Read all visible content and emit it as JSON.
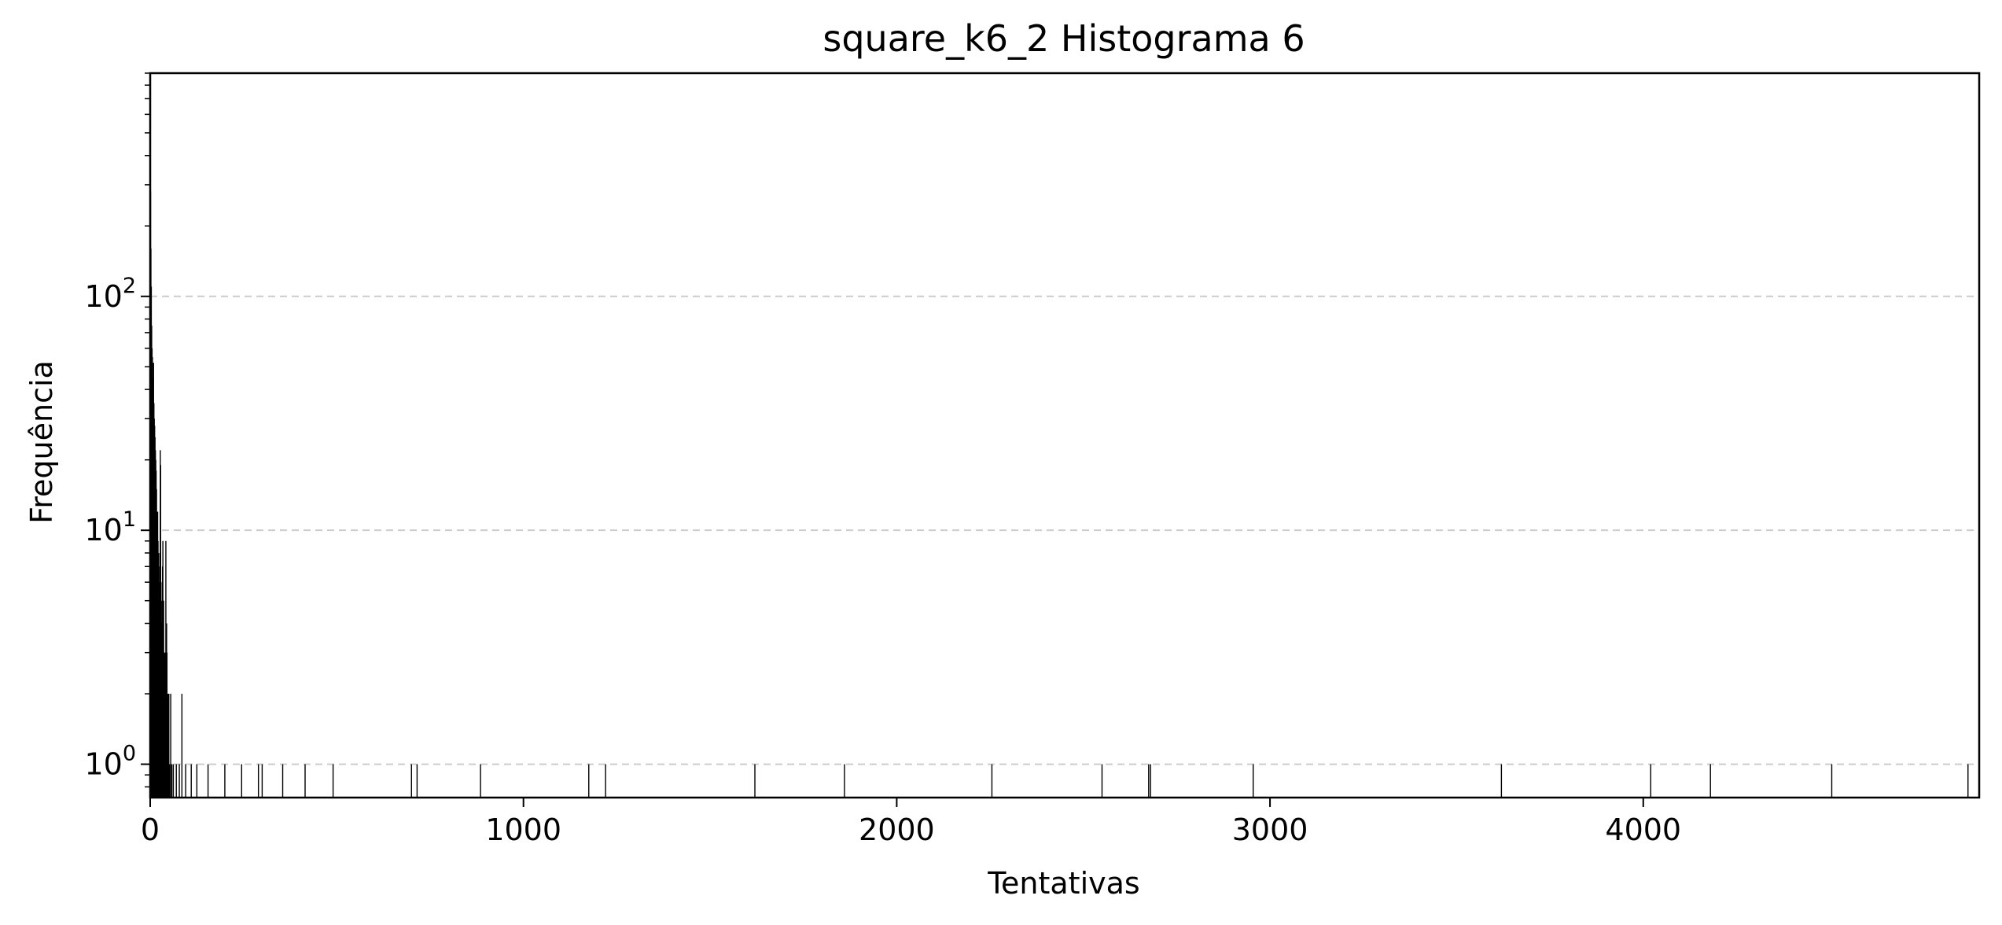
{
  "chart_data": {
    "type": "bar",
    "title": "square_k6_2 Histograma 6",
    "xlabel": "Tentativas",
    "ylabel": "Frequência",
    "yscale": "log",
    "xlim": [
      0,
      4900
    ],
    "ylim": [
      0.72,
      900
    ],
    "x_ticks": [
      {
        "value": 0,
        "label": "0"
      },
      {
        "value": 1000,
        "label": "1000"
      },
      {
        "value": 2000,
        "label": "2000"
      },
      {
        "value": 3000,
        "label": "3000"
      },
      {
        "value": 4000,
        "label": "4000"
      }
    ],
    "y_ticks": [
      {
        "value": 1,
        "base": "10",
        "exp": "0"
      },
      {
        "value": 10,
        "base": "10",
        "exp": "1"
      },
      {
        "value": 100,
        "base": "10",
        "exp": "2"
      }
    ],
    "grid": {
      "y": true,
      "x": false,
      "style": "dashed"
    },
    "bar_color": "#000000",
    "bars": [
      {
        "x": 1,
        "y": 280
      },
      {
        "x": 2,
        "y": 160
      },
      {
        "x": 3,
        "y": 110
      },
      {
        "x": 4,
        "y": 75
      },
      {
        "x": 5,
        "y": 60
      },
      {
        "x": 6,
        "y": 55
      },
      {
        "x": 7,
        "y": 45
      },
      {
        "x": 8,
        "y": 40
      },
      {
        "x": 9,
        "y": 52
      },
      {
        "x": 10,
        "y": 35
      },
      {
        "x": 11,
        "y": 30
      },
      {
        "x": 12,
        "y": 28
      },
      {
        "x": 13,
        "y": 25
      },
      {
        "x": 14,
        "y": 22
      },
      {
        "x": 15,
        "y": 20
      },
      {
        "x": 16,
        "y": 18
      },
      {
        "x": 17,
        "y": 15
      },
      {
        "x": 18,
        "y": 12
      },
      {
        "x": 19,
        "y": 10
      },
      {
        "x": 20,
        "y": 12
      },
      {
        "x": 21,
        "y": 9
      },
      {
        "x": 22,
        "y": 8
      },
      {
        "x": 23,
        "y": 7
      },
      {
        "x": 24,
        "y": 5
      },
      {
        "x": 25,
        "y": 6
      },
      {
        "x": 26,
        "y": 8
      },
      {
        "x": 27,
        "y": 22
      },
      {
        "x": 28,
        "y": 19
      },
      {
        "x": 29,
        "y": 6
      },
      {
        "x": 30,
        "y": 5
      },
      {
        "x": 31,
        "y": 4
      },
      {
        "x": 32,
        "y": 3
      },
      {
        "x": 33,
        "y": 7
      },
      {
        "x": 34,
        "y": 9
      },
      {
        "x": 35,
        "y": 4
      },
      {
        "x": 36,
        "y": 5
      },
      {
        "x": 37,
        "y": 2
      },
      {
        "x": 38,
        "y": 3
      },
      {
        "x": 39,
        "y": 2
      },
      {
        "x": 40,
        "y": 3
      },
      {
        "x": 41,
        "y": 2
      },
      {
        "x": 42,
        "y": 9
      },
      {
        "x": 43,
        "y": 2
      },
      {
        "x": 44,
        "y": 4
      },
      {
        "x": 45,
        "y": 3
      },
      {
        "x": 46,
        "y": 2
      },
      {
        "x": 47,
        "y": 2
      },
      {
        "x": 48,
        "y": 1
      },
      {
        "x": 49,
        "y": 2
      },
      {
        "x": 50,
        "y": 2
      },
      {
        "x": 52,
        "y": 1
      },
      {
        "x": 55,
        "y": 2
      },
      {
        "x": 58,
        "y": 1
      },
      {
        "x": 62,
        "y": 1
      },
      {
        "x": 70,
        "y": 1
      },
      {
        "x": 78,
        "y": 1
      },
      {
        "x": 85,
        "y": 2
      },
      {
        "x": 95,
        "y": 1
      },
      {
        "x": 110,
        "y": 1
      },
      {
        "x": 125,
        "y": 1
      },
      {
        "x": 155,
        "y": 1
      },
      {
        "x": 200,
        "y": 1
      },
      {
        "x": 245,
        "y": 1
      },
      {
        "x": 290,
        "y": 1
      },
      {
        "x": 300,
        "y": 1
      },
      {
        "x": 355,
        "y": 1
      },
      {
        "x": 415,
        "y": 1
      },
      {
        "x": 490,
        "y": 1
      },
      {
        "x": 700,
        "y": 1
      },
      {
        "x": 715,
        "y": 1
      },
      {
        "x": 885,
        "y": 1
      },
      {
        "x": 1175,
        "y": 1
      },
      {
        "x": 1220,
        "y": 1
      },
      {
        "x": 1620,
        "y": 1
      },
      {
        "x": 1860,
        "y": 1
      },
      {
        "x": 2255,
        "y": 1
      },
      {
        "x": 2550,
        "y": 1
      },
      {
        "x": 2675,
        "y": 1
      },
      {
        "x": 2680,
        "y": 1
      },
      {
        "x": 2955,
        "y": 1
      },
      {
        "x": 3620,
        "y": 1
      },
      {
        "x": 4020,
        "y": 1
      },
      {
        "x": 4180,
        "y": 1
      },
      {
        "x": 4505,
        "y": 1
      },
      {
        "x": 4870,
        "y": 1
      }
    ]
  }
}
